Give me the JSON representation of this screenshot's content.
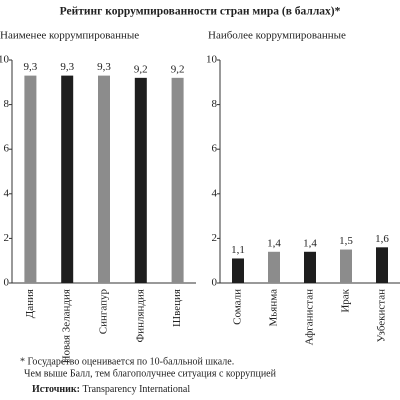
{
  "title": "Рейтинг коррумпированности стран мира (в баллах)*",
  "chart_data": [
    {
      "type": "bar",
      "title": "Наименее коррумпированные",
      "categories": [
        "Дания",
        "Новая Зеландия",
        "Сингапур",
        "Финляндия",
        "Швеция"
      ],
      "values": [
        9.3,
        9.3,
        9.3,
        9.2,
        9.2
      ],
      "value_labels": [
        "9,3",
        "9,3",
        "9,3",
        "9,2",
        "9,2"
      ],
      "colors": [
        "#8c8c8c",
        "#1e1e1e",
        "#8c8c8c",
        "#1e1e1e",
        "#8c8c8c"
      ],
      "ylim": [
        0,
        10
      ],
      "yticks": [
        0,
        2,
        4,
        6,
        8,
        10
      ]
    },
    {
      "type": "bar",
      "title": "Наиболее коррумпированные",
      "categories": [
        "Сомали",
        "Мьянма",
        "Афганистан",
        "Ирак",
        "Узбекистан"
      ],
      "values": [
        1.1,
        1.4,
        1.4,
        1.5,
        1.6
      ],
      "value_labels": [
        "1,1",
        "1,4",
        "1,4",
        "1,5",
        "1,6"
      ],
      "colors": [
        "#1e1e1e",
        "#8c8c8c",
        "#1e1e1e",
        "#8c8c8c",
        "#1e1e1e"
      ],
      "ylim": [
        0,
        10
      ],
      "yticks": [
        0,
        2,
        4,
        6,
        8,
        10
      ]
    }
  ],
  "footnotes": [
    "* Государство оценивается по 10-балльной шкале.",
    "Чем выше Балл, тем благополучнее ситуация с коррупцией"
  ],
  "source": {
    "label": "Источник:",
    "text": "Transparency International"
  }
}
